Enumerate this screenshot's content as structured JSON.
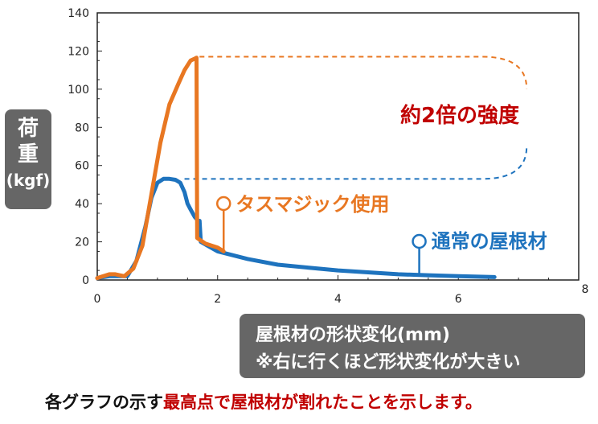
{
  "chart_data": {
    "type": "line",
    "xlim": [
      0,
      8
    ],
    "ylim": [
      0,
      140
    ],
    "x_ticks": [
      "0",
      "2",
      "4",
      "6",
      "8"
    ],
    "y_ticks": [
      "0",
      "20",
      "40",
      "60",
      "80",
      "100",
      "120",
      "140"
    ],
    "ylabel": [
      "荷",
      "重",
      "(kgf)"
    ],
    "xlabel": [
      "屋根材の形状変化(mm)",
      "※右に行くほど形状変化が大きい"
    ],
    "annotation": "約2倍の強度",
    "series": [
      {
        "name": "タスマジック使用",
        "color": "#e87722",
        "points": [
          [
            0,
            1
          ],
          [
            0.2,
            3
          ],
          [
            0.3,
            3
          ],
          [
            0.45,
            2
          ],
          [
            0.6,
            6
          ],
          [
            0.75,
            18
          ],
          [
            0.9,
            45
          ],
          [
            1.05,
            72
          ],
          [
            1.2,
            92
          ],
          [
            1.35,
            103
          ],
          [
            1.45,
            110
          ],
          [
            1.55,
            115
          ],
          [
            1.62,
            116
          ],
          [
            1.65,
            116.5
          ],
          [
            1.66,
            22
          ],
          [
            1.8,
            19
          ],
          [
            2.0,
            17
          ],
          [
            2.1,
            15
          ]
        ]
      },
      {
        "name": "通常の屋根材",
        "color": "#1e73be",
        "points": [
          [
            0,
            1
          ],
          [
            0.2,
            2
          ],
          [
            0.35,
            2
          ],
          [
            0.5,
            2
          ],
          [
            0.65,
            10
          ],
          [
            0.8,
            28
          ],
          [
            0.9,
            43
          ],
          [
            1.0,
            51
          ],
          [
            1.1,
            53
          ],
          [
            1.2,
            53
          ],
          [
            1.3,
            52.5
          ],
          [
            1.38,
            51
          ],
          [
            1.45,
            46
          ],
          [
            1.5,
            40
          ],
          [
            1.55,
            37
          ],
          [
            1.62,
            33
          ],
          [
            1.68,
            31
          ],
          [
            1.7,
            31
          ],
          [
            1.72,
            20
          ],
          [
            2.0,
            15
          ],
          [
            2.5,
            11
          ],
          [
            3.0,
            8
          ],
          [
            3.5,
            6.5
          ],
          [
            4.0,
            5
          ],
          [
            4.5,
            4
          ],
          [
            5.0,
            3
          ],
          [
            5.5,
            2.5
          ],
          [
            6.0,
            2
          ],
          [
            6.6,
            1.5
          ]
        ]
      }
    ],
    "peak_blue": 53,
    "peak_orange": 117
  },
  "footer": {
    "black": "各グラフの示す",
    "red": "最高点で屋根材が割れたことを示します。"
  },
  "colors": {
    "orange": "#e87722",
    "blue": "#1e73be",
    "red": "#c00000",
    "box": "#666666"
  }
}
